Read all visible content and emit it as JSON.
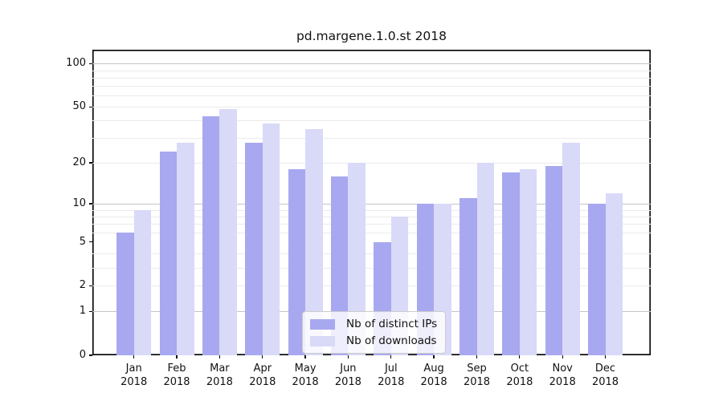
{
  "chart_data": {
    "type": "bar",
    "title": "pd.margene.1.0.st 2018",
    "categories": [
      "Jan",
      "Feb",
      "Mar",
      "Apr",
      "May",
      "Jun",
      "Jul",
      "Aug",
      "Sep",
      "Oct",
      "Nov",
      "Dec"
    ],
    "x_tick_year": "2018",
    "series": [
      {
        "name": "Nb of distinct IPs",
        "color": "#a8a8f0",
        "values": [
          6,
          24,
          43,
          28,
          18,
          16,
          5,
          10,
          11,
          17,
          19,
          10
        ]
      },
      {
        "name": "Nb of downloads",
        "color": "#d9d9f8",
        "values": [
          9,
          28,
          48,
          38,
          35,
          20,
          8,
          10,
          20,
          18,
          28,
          12
        ]
      }
    ],
    "xlabel": "",
    "ylabel": "",
    "yscale": "log1p",
    "ylim": [
      0,
      124.8
    ],
    "y_ticks": [
      100,
      50,
      20,
      10,
      5,
      2,
      1,
      0
    ],
    "y_minor_grid_values": [
      2,
      3,
      4,
      6,
      7,
      8,
      9,
      20,
      30,
      40,
      50,
      60,
      70,
      80,
      90
    ],
    "y_major_grid_values": [
      1,
      10,
      100
    ],
    "grid": "on",
    "legend_position": "lower center",
    "colors": {
      "major_grid": "#c4c4c4",
      "minor_grid": "#ebebeb",
      "axis": "#000000",
      "background": "#ffffff"
    }
  }
}
